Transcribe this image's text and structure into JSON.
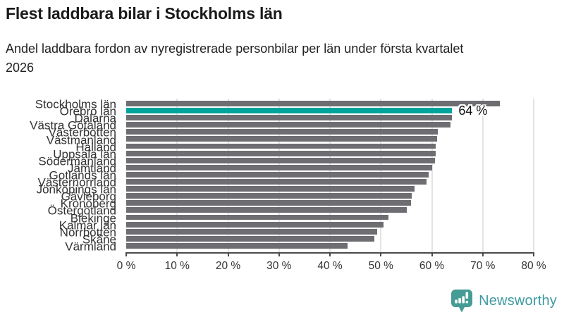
{
  "header": {
    "title": "Flest laddbara bilar i Stockholms län",
    "subtitle": "Andel laddbara fordon av nyregistrerade personbilar per län under första kvartalet 2026"
  },
  "chart_data": {
    "type": "bar",
    "orientation": "horizontal",
    "title": "Flest laddbara bilar i Stockholms län",
    "subtitle": "Andel laddbara fordon av nyregistrerade personbilar per län under första kvartalet 2026",
    "categories": [
      "Stockholms län",
      "Örebro län",
      "Dalarna",
      "Västra Götaland",
      "Västerbotten",
      "Västmanland",
      "Halland",
      "Uppsala län",
      "Södermanland",
      "Jämtland",
      "Gotlands län",
      "Västernorrland",
      "Jönköpings län",
      "Gävleborg",
      "Kronoberg",
      "Östergötland",
      "Blekinge",
      "Kalmar län",
      "Norrbotten",
      "Skåne",
      "Värmland"
    ],
    "values": [
      73.3,
      64,
      63.9,
      63.6,
      61.2,
      61.0,
      60.8,
      60.7,
      60.6,
      60.1,
      59.4,
      58.9,
      56.6,
      56.1,
      55.9,
      55.1,
      51.5,
      50.5,
      49.3,
      48.7,
      43.4
    ],
    "unit": "%",
    "highlight_index": 1,
    "highlight_label": "64 %",
    "xlim": [
      0,
      80
    ],
    "x_ticks": [
      0,
      10,
      20,
      30,
      40,
      50,
      60,
      70,
      80
    ],
    "x_tick_labels": [
      "0 %",
      "10 %",
      "20 %",
      "30 %",
      "40 %",
      "50 %",
      "60 %",
      "70 %",
      "80 %"
    ],
    "grid": true,
    "legend": false,
    "bar_color": "#6e6e72",
    "highlight_color": "#00a49b",
    "gridline_color": "#e3e3e3",
    "axis_color": "#4a4a4a"
  },
  "footer": {
    "brand": "Newsworthy",
    "brand_color": "#3f9aa0",
    "icon_color": "#459c95"
  }
}
